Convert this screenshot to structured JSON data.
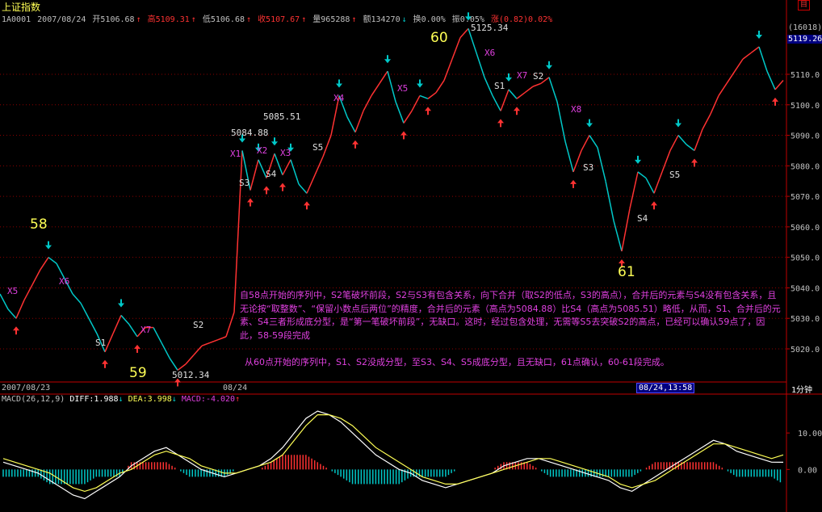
{
  "window": {
    "title": "上证指数",
    "close_glyph": "目"
  },
  "header": {
    "code": "1A0001",
    "date": "2007/08/24",
    "open": "开5106.68",
    "high": "高5109.31",
    "low": "低5106.68",
    "close": "收5107.67",
    "volume": "量965288",
    "amount": "额134270",
    "turnover": "换0.00%",
    "amplitude": "振0.05%",
    "change": "涨(0.82)0.02%"
  },
  "price_axis": {
    "ticks": [
      "5110.0",
      "5100.0",
      "5090.0",
      "5080.0",
      "5070.0",
      "5060.0",
      "5050.0",
      "5040.0",
      "5030.0",
      "5020.0"
    ],
    "current_value": "5119.26",
    "cursor_count": "(16018)"
  },
  "time_axis": {
    "left_date": "2007/08/23",
    "mid_date": "08/24",
    "cursor_time": "08/24,13:58",
    "period": "1分钟"
  },
  "macd": {
    "header": "MACD(26,12,9)",
    "diff": "DIFF:1.988",
    "dea": "DEA:3.998",
    "macd": "MACD:-4.020",
    "ticks": [
      "10.00",
      "0.00"
    ]
  },
  "annotations": {
    "point_labels": [
      "58",
      "59",
      "60",
      "61"
    ],
    "price_labels": [
      "5012.34",
      "5125.34",
      "5084.88",
      "5085.51"
    ],
    "stroke_labels": [
      "X5",
      "X6",
      "S1",
      "X7",
      "S2",
      "X1",
      "X2",
      "X3",
      "S3",
      "S4",
      "S5",
      "X4",
      "X5",
      "X6",
      "S1",
      "X7",
      "S2",
      "X8",
      "S3",
      "S4",
      "S5"
    ],
    "note1": "自58点开始的序列中，S2笔破坏前段，S2与S3有包含关系，向下合并（取S2的低点，S3的高点），合并后的元素与S4没有包含关系，且无论按“取整数”、“保留小数点后两位”的精度，合并后的元素（高点为5084.88）比S4（高点为5085.51）略低，从而，S1、合并后的元素、S4三者形成底分型，是“第一笔破坏前段”，无缺口。这时，经过包含处理，无需等S5去突破S2的高点，已经可以确认59点了，因此，58-59段完成",
    "note2": "从60点开始的序列中，S1、S2没成分型，至S3、S4、S5成底分型，且无缺口，61点确认，60-61段完成。"
  },
  "chart_data": [
    {
      "type": "line",
      "title": "上证指数",
      "ylim": [
        5012,
        5126
      ],
      "grid": true,
      "x": [
        0,
        10,
        20,
        30,
        40,
        50,
        60,
        70,
        80,
        90,
        100,
        110,
        120,
        130,
        140,
        150,
        160,
        170,
        180,
        190,
        200,
        210,
        220,
        230,
        240,
        250,
        260,
        270,
        280,
        290,
        300,
        310,
        320,
        330,
        340,
        350,
        360,
        370,
        380,
        390,
        400,
        410,
        420,
        430,
        440,
        450,
        460,
        470,
        480,
        490,
        500,
        510,
        520,
        530,
        540,
        550,
        560,
        570,
        580,
        590,
        600,
        610,
        620,
        630,
        640,
        650,
        660,
        670,
        680,
        690,
        700,
        710,
        720,
        730,
        740,
        750,
        760,
        770,
        780,
        790,
        800,
        810,
        820,
        830,
        840,
        850,
        860,
        870,
        880,
        890,
        900,
        910,
        920,
        930,
        940,
        950,
        960,
        970
      ],
      "values": [
        5038,
        5033,
        5030,
        5036,
        5041,
        5046,
        5050,
        5048,
        5043,
        5038,
        5035,
        5030,
        5025,
        5019,
        5025,
        5031,
        5028,
        5024,
        5027,
        5027,
        5022,
        5017,
        5013,
        5015,
        5018,
        5021,
        5022,
        5023,
        5024,
        5032,
        5085,
        5072,
        5082,
        5076,
        5084,
        5077,
        5082,
        5074,
        5071,
        5077,
        5083,
        5090,
        5103,
        5096,
        5091,
        5098,
        5103,
        5107,
        5111,
        5101,
        5094,
        5098,
        5103,
        5102,
        5104,
        5108,
        5115,
        5122,
        5125,
        5117,
        5109,
        5103,
        5098,
        5105,
        5102,
        5104,
        5106,
        5107,
        5109,
        5101,
        5088,
        5078,
        5085,
        5090,
        5086,
        5075,
        5062,
        5052,
        5066,
        5078,
        5076,
        5071,
        5078,
        5085,
        5090,
        5087,
        5085,
        5092,
        5097,
        5103,
        5107,
        5111,
        5115,
        5117,
        5119,
        5111,
        5105,
        5108
      ]
    },
    {
      "type": "area",
      "title": "MACD(26,12,9)",
      "series": [
        {
          "name": "DIFF",
          "values": [
            2,
            1,
            0,
            -1,
            -3,
            -5,
            -7,
            -8,
            -6,
            -4,
            -2,
            1,
            3,
            5,
            6,
            4,
            2,
            0,
            -1,
            -2,
            -1,
            0,
            1,
            3,
            6,
            10,
            14,
            16,
            15,
            13,
            10,
            7,
            4,
            2,
            0,
            -1,
            -3,
            -4,
            -5,
            -4,
            -3,
            -2,
            -1,
            1,
            2,
            3,
            3,
            2,
            1,
            0,
            -1,
            -2,
            -3,
            -5,
            -6,
            -4,
            -2,
            0,
            2,
            4,
            6,
            8,
            7,
            5,
            4,
            3,
            2,
            1.988
          ]
        },
        {
          "name": "DEA",
          "values": [
            3,
            2,
            1,
            0,
            -1,
            -3,
            -5,
            -6,
            -5,
            -3,
            -1,
            0,
            2,
            4,
            5,
            4,
            3,
            1,
            0,
            -1,
            -1,
            0,
            1,
            2,
            4,
            8,
            12,
            15,
            15,
            14,
            12,
            9,
            6,
            4,
            2,
            0,
            -2,
            -3,
            -4,
            -4,
            -3,
            -2,
            -1,
            0,
            1,
            2,
            3,
            3,
            2,
            1,
            0,
            -1,
            -2,
            -4,
            -5,
            -4,
            -3,
            -1,
            1,
            3,
            5,
            7,
            7,
            6,
            5,
            4,
            3,
            3.998
          ]
        }
      ],
      "ylim": [
        -9,
        18
      ]
    }
  ],
  "colors": {
    "up": "#ff3232",
    "down": "#00c8c8",
    "grid": "#8b0000",
    "axis": "#c00000",
    "text": "#c0c0c0",
    "label_yellow": "#ffff55",
    "label_magenta": "#e040e0",
    "note": "#e040e0"
  }
}
